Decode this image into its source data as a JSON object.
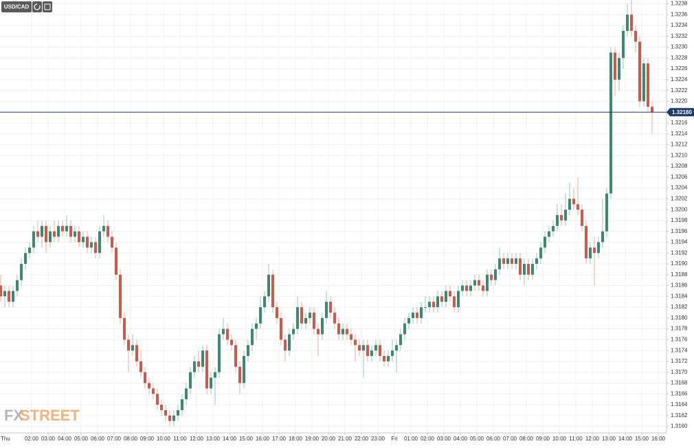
{
  "toolbar": {
    "symbol": "USD/CAD"
  },
  "watermark": {
    "prefix": "FX",
    "suffix": "STREET"
  },
  "chart_data": {
    "type": "candlestick",
    "up_color": "#3a8a72",
    "down_color": "#d2574a",
    "grid": true,
    "last_price": {
      "value": 1.3218,
      "label": "1.32180"
    },
    "last_price_color": "#1f3b6b",
    "xlim": [
      0,
      40.5
    ],
    "ylim": [
      1.31588,
      1.32387
    ],
    "xticks": [
      {
        "value": 0,
        "label": "Thu"
      },
      {
        "value": 2,
        "label": "02:00"
      },
      {
        "value": 3,
        "label": "03:00"
      },
      {
        "value": 4,
        "label": "04:00"
      },
      {
        "value": 5,
        "label": "05:00"
      },
      {
        "value": 6,
        "label": "06:00"
      },
      {
        "value": 7,
        "label": "07:00"
      },
      {
        "value": 8,
        "label": "08:00"
      },
      {
        "value": 9,
        "label": "09:00"
      },
      {
        "value": 10,
        "label": "10:00"
      },
      {
        "value": 11,
        "label": "11:00"
      },
      {
        "value": 12,
        "label": "12:00"
      },
      {
        "value": 13,
        "label": "13:00"
      },
      {
        "value": 14,
        "label": "14:00"
      },
      {
        "value": 15,
        "label": "15:00"
      },
      {
        "value": 16,
        "label": "16:00"
      },
      {
        "value": 17,
        "label": "17:00"
      },
      {
        "value": 18,
        "label": "18:00"
      },
      {
        "value": 19,
        "label": "19:00"
      },
      {
        "value": 20,
        "label": "20:00"
      },
      {
        "value": 21,
        "label": "21:00"
      },
      {
        "value": 22,
        "label": "22:00"
      },
      {
        "value": 23,
        "label": "23:00"
      },
      {
        "value": 24,
        "label": "Fri"
      },
      {
        "value": 25,
        "label": "01:00"
      },
      {
        "value": 26,
        "label": "02:00"
      },
      {
        "value": 27,
        "label": "03:00"
      },
      {
        "value": 28,
        "label": "04:00"
      },
      {
        "value": 29,
        "label": "05:00"
      },
      {
        "value": 30,
        "label": "06:00"
      },
      {
        "value": 31,
        "label": "07:00"
      },
      {
        "value": 32,
        "label": "08:00"
      },
      {
        "value": 33,
        "label": "09:00"
      },
      {
        "value": 34,
        "label": "10:00"
      },
      {
        "value": 35,
        "label": "11:00"
      },
      {
        "value": 36,
        "label": "12:00"
      },
      {
        "value": 37,
        "label": "13:00"
      },
      {
        "value": 38,
        "label": "14:00"
      },
      {
        "value": 39,
        "label": "15:00"
      },
      {
        "value": 40,
        "label": "16:00"
      }
    ],
    "yticks": [
      {
        "value": 1.316,
        "label": "1.3160"
      },
      {
        "value": 1.3162,
        "label": "1.3162"
      },
      {
        "value": 1.3164,
        "label": "1.3164"
      },
      {
        "value": 1.3166,
        "label": "1.3166"
      },
      {
        "value": 1.3168,
        "label": "1.3168"
      },
      {
        "value": 1.317,
        "label": "1.3170"
      },
      {
        "value": 1.3172,
        "label": "1.3172"
      },
      {
        "value": 1.3174,
        "label": "1.3174"
      },
      {
        "value": 1.3176,
        "label": "1.3176"
      },
      {
        "value": 1.3178,
        "label": "1.3178"
      },
      {
        "value": 1.318,
        "label": "1.3180"
      },
      {
        "value": 1.3182,
        "label": "1.3182"
      },
      {
        "value": 1.3184,
        "label": "1.3184"
      },
      {
        "value": 1.3186,
        "label": "1.3186"
      },
      {
        "value": 1.3188,
        "label": "1.3188"
      },
      {
        "value": 1.319,
        "label": "1.3190"
      },
      {
        "value": 1.3192,
        "label": "1.3192"
      },
      {
        "value": 1.3194,
        "label": "1.3194"
      },
      {
        "value": 1.3196,
        "label": "1.3196"
      },
      {
        "value": 1.3198,
        "label": "1.3198"
      },
      {
        "value": 1.32,
        "label": "1.3200"
      },
      {
        "value": 1.3202,
        "label": "1.3202"
      },
      {
        "value": 1.3204,
        "label": "1.3204"
      },
      {
        "value": 1.3206,
        "label": "1.3206"
      },
      {
        "value": 1.3208,
        "label": "1.3208"
      },
      {
        "value": 1.321,
        "label": "1.3210"
      },
      {
        "value": 1.3212,
        "label": "1.3212"
      },
      {
        "value": 1.3214,
        "label": "1.3214"
      },
      {
        "value": 1.3216,
        "label": "1.3216"
      },
      {
        "value": 1.3218,
        "label": "1.3218"
      },
      {
        "value": 1.322,
        "label": "1.3220"
      },
      {
        "value": 1.3222,
        "label": "1.3222"
      },
      {
        "value": 1.3224,
        "label": "1.3224"
      },
      {
        "value": 1.3226,
        "label": "1.3226"
      },
      {
        "value": 1.3228,
        "label": "1.3228"
      },
      {
        "value": 1.323,
        "label": "1.3230"
      },
      {
        "value": 1.3232,
        "label": "1.3232"
      },
      {
        "value": 1.3234,
        "label": "1.3234"
      },
      {
        "value": 1.3236,
        "label": "1.3236"
      },
      {
        "value": 1.3238,
        "label": "1.3238"
      }
    ],
    "ohlc": [
      [
        1.3186,
        1.3188,
        1.3183,
        1.3184
      ],
      [
        1.3184,
        1.3186,
        1.3182,
        1.3185
      ],
      [
        1.3185,
        1.3186,
        1.3182,
        1.3183
      ],
      [
        1.3183,
        1.3186,
        1.3182,
        1.3185
      ],
      [
        1.3185,
        1.3188,
        1.3184,
        1.3187
      ],
      [
        1.3187,
        1.3191,
        1.3186,
        1.319
      ],
      [
        1.319,
        1.3193,
        1.3189,
        1.3192
      ],
      [
        1.3192,
        1.3194,
        1.3191,
        1.3193
      ],
      [
        1.3193,
        1.3197,
        1.3192,
        1.3196
      ],
      [
        1.3196,
        1.3198,
        1.3194,
        1.3195
      ],
      [
        1.3195,
        1.3198,
        1.3193,
        1.3197
      ],
      [
        1.3197,
        1.3198,
        1.3192,
        1.3194
      ],
      [
        1.3194,
        1.3197,
        1.3193,
        1.3196
      ],
      [
        1.3196,
        1.3198,
        1.3194,
        1.3195
      ],
      [
        1.3195,
        1.3198,
        1.3194,
        1.3197
      ],
      [
        1.3197,
        1.3198,
        1.3195,
        1.3196
      ],
      [
        1.3196,
        1.3199,
        1.3195,
        1.3197
      ],
      [
        1.3197,
        1.3198,
        1.3194,
        1.3195
      ],
      [
        1.3195,
        1.3197,
        1.3194,
        1.3196
      ],
      [
        1.3196,
        1.3197,
        1.3193,
        1.3194
      ],
      [
        1.3194,
        1.3196,
        1.3193,
        1.3195
      ],
      [
        1.3195,
        1.3196,
        1.3192,
        1.3193
      ],
      [
        1.3193,
        1.3195,
        1.3192,
        1.3194
      ],
      [
        1.3194,
        1.3195,
        1.3191,
        1.3192
      ],
      [
        1.3192,
        1.3197,
        1.3191,
        1.3196
      ],
      [
        1.3196,
        1.3199,
        1.3195,
        1.3197
      ],
      [
        1.3197,
        1.3198,
        1.3194,
        1.3195
      ],
      [
        1.3195,
        1.3196,
        1.3192,
        1.3193
      ],
      [
        1.3193,
        1.3194,
        1.3187,
        1.3188
      ],
      [
        1.3188,
        1.3189,
        1.3179,
        1.318
      ],
      [
        1.318,
        1.3181,
        1.3175,
        1.3176
      ],
      [
        1.3176,
        1.3177,
        1.317,
        1.3174
      ],
      [
        1.3174,
        1.3177,
        1.3173,
        1.3175
      ],
      [
        1.3175,
        1.3176,
        1.3171,
        1.3172
      ],
      [
        1.3172,
        1.3174,
        1.3169,
        1.317
      ],
      [
        1.317,
        1.3171,
        1.3167,
        1.3168
      ],
      [
        1.3168,
        1.3169,
        1.3166,
        1.3167
      ],
      [
        1.3167,
        1.3168,
        1.3165,
        1.3166
      ],
      [
        1.3166,
        1.3167,
        1.3163,
        1.3164
      ],
      [
        1.3164,
        1.3165,
        1.3162,
        1.3163
      ],
      [
        1.3163,
        1.3164,
        1.3161,
        1.3162
      ],
      [
        1.3162,
        1.3163,
        1.316,
        1.3161
      ],
      [
        1.3161,
        1.3163,
        1.316,
        1.3162
      ],
      [
        1.3162,
        1.3164,
        1.3161,
        1.3163
      ],
      [
        1.3163,
        1.3166,
        1.3162,
        1.3165
      ],
      [
        1.3165,
        1.3168,
        1.3164,
        1.3167
      ],
      [
        1.3167,
        1.3171,
        1.3166,
        1.317
      ],
      [
        1.317,
        1.3173,
        1.3169,
        1.3172
      ],
      [
        1.3172,
        1.3174,
        1.317,
        1.3171
      ],
      [
        1.3171,
        1.3175,
        1.317,
        1.3174
      ],
      [
        1.3174,
        1.3175,
        1.3166,
        1.3167
      ],
      [
        1.3167,
        1.317,
        1.3166,
        1.3169
      ],
      [
        1.3169,
        1.3171,
        1.3164,
        1.317
      ],
      [
        1.317,
        1.3178,
        1.3169,
        1.3177
      ],
      [
        1.3177,
        1.318,
        1.3176,
        1.3178
      ],
      [
        1.3178,
        1.3179,
        1.3175,
        1.3176
      ],
      [
        1.3176,
        1.3177,
        1.3174,
        1.3175
      ],
      [
        1.3175,
        1.3176,
        1.317,
        1.3171
      ],
      [
        1.3171,
        1.3172,
        1.3166,
        1.3168
      ],
      [
        1.3168,
        1.3174,
        1.3167,
        1.3173
      ],
      [
        1.3173,
        1.3176,
        1.3172,
        1.3175
      ],
      [
        1.3175,
        1.3179,
        1.3174,
        1.3178
      ],
      [
        1.3178,
        1.318,
        1.3176,
        1.3179
      ],
      [
        1.3179,
        1.3184,
        1.3178,
        1.3182
      ],
      [
        1.3182,
        1.3185,
        1.3181,
        1.3184
      ],
      [
        1.3184,
        1.319,
        1.3183,
        1.3188
      ],
      [
        1.3188,
        1.3189,
        1.3181,
        1.3182
      ],
      [
        1.3182,
        1.3183,
        1.3179,
        1.318
      ],
      [
        1.318,
        1.3181,
        1.3175,
        1.3176
      ],
      [
        1.3176,
        1.3177,
        1.3172,
        1.3174
      ],
      [
        1.3174,
        1.3178,
        1.3173,
        1.3177
      ],
      [
        1.3177,
        1.3179,
        1.3176,
        1.3178
      ],
      [
        1.3178,
        1.3184,
        1.3177,
        1.3182
      ],
      [
        1.3182,
        1.3183,
        1.3178,
        1.3179
      ],
      [
        1.3179,
        1.3181,
        1.3178,
        1.318
      ],
      [
        1.318,
        1.3182,
        1.3179,
        1.3181
      ],
      [
        1.3181,
        1.3182,
        1.3177,
        1.3178
      ],
      [
        1.3178,
        1.3179,
        1.3173,
        1.3177
      ],
      [
        1.3177,
        1.3181,
        1.3176,
        1.318
      ],
      [
        1.318,
        1.3185,
        1.3179,
        1.3183
      ],
      [
        1.3183,
        1.3184,
        1.318,
        1.3181
      ],
      [
        1.3181,
        1.3182,
        1.3178,
        1.3179
      ],
      [
        1.3179,
        1.318,
        1.3176,
        1.3177
      ],
      [
        1.3177,
        1.3179,
        1.3176,
        1.3178
      ],
      [
        1.3178,
        1.3179,
        1.3176,
        1.3177
      ],
      [
        1.3177,
        1.3178,
        1.3175,
        1.3176
      ],
      [
        1.3176,
        1.3177,
        1.3172,
        1.3175
      ],
      [
        1.3175,
        1.3176,
        1.3173,
        1.3174
      ],
      [
        1.3174,
        1.3176,
        1.3169,
        1.3175
      ],
      [
        1.3175,
        1.3176,
        1.3172,
        1.3173
      ],
      [
        1.3173,
        1.3175,
        1.3172,
        1.3174
      ],
      [
        1.3174,
        1.3176,
        1.3173,
        1.3175
      ],
      [
        1.3175,
        1.3176,
        1.3172,
        1.3173
      ],
      [
        1.3173,
        1.3174,
        1.3171,
        1.3172
      ],
      [
        1.3172,
        1.3174,
        1.3171,
        1.3173
      ],
      [
        1.3173,
        1.3176,
        1.3172,
        1.3174
      ],
      [
        1.3174,
        1.3176,
        1.317,
        1.3175
      ],
      [
        1.3175,
        1.3178,
        1.3174,
        1.3177
      ],
      [
        1.3177,
        1.318,
        1.3176,
        1.3179
      ],
      [
        1.3179,
        1.3181,
        1.3178,
        1.318
      ],
      [
        1.318,
        1.3182,
        1.3179,
        1.3181
      ],
      [
        1.3181,
        1.3182,
        1.3179,
        1.318
      ],
      [
        1.318,
        1.3183,
        1.3179,
        1.3182
      ],
      [
        1.3182,
        1.3184,
        1.3181,
        1.3182
      ],
      [
        1.3182,
        1.3184,
        1.3181,
        1.3183
      ],
      [
        1.3183,
        1.3184,
        1.3181,
        1.3182
      ],
      [
        1.3182,
        1.3185,
        1.3181,
        1.3184
      ],
      [
        1.3184,
        1.3185,
        1.3182,
        1.3183
      ],
      [
        1.3183,
        1.3186,
        1.3182,
        1.3185
      ],
      [
        1.3185,
        1.3186,
        1.3183,
        1.3184
      ],
      [
        1.3184,
        1.3185,
        1.3181,
        1.3182
      ],
      [
        1.3182,
        1.3186,
        1.3181,
        1.3185
      ],
      [
        1.3185,
        1.3187,
        1.3184,
        1.3186
      ],
      [
        1.3186,
        1.3187,
        1.3184,
        1.3185
      ],
      [
        1.3185,
        1.3187,
        1.3184,
        1.3186
      ],
      [
        1.3186,
        1.3188,
        1.3185,
        1.3187
      ],
      [
        1.3187,
        1.3188,
        1.3185,
        1.3186
      ],
      [
        1.3186,
        1.3187,
        1.3184,
        1.3185
      ],
      [
        1.3185,
        1.3189,
        1.3184,
        1.3188
      ],
      [
        1.3188,
        1.3189,
        1.3186,
        1.3187
      ],
      [
        1.3187,
        1.319,
        1.3186,
        1.3189
      ],
      [
        1.3189,
        1.3193,
        1.3188,
        1.3191
      ],
      [
        1.3191,
        1.3192,
        1.3189,
        1.319
      ],
      [
        1.319,
        1.3192,
        1.3189,
        1.3191
      ],
      [
        1.3191,
        1.3192,
        1.3189,
        1.319
      ],
      [
        1.319,
        1.3192,
        1.3189,
        1.3191
      ],
      [
        1.3191,
        1.3192,
        1.3187,
        1.3188
      ],
      [
        1.3188,
        1.3191,
        1.3186,
        1.319
      ],
      [
        1.319,
        1.3191,
        1.3187,
        1.3188
      ],
      [
        1.3188,
        1.3191,
        1.3187,
        1.319
      ],
      [
        1.319,
        1.3192,
        1.3189,
        1.3191
      ],
      [
        1.3191,
        1.3194,
        1.319,
        1.3193
      ],
      [
        1.3193,
        1.3196,
        1.3192,
        1.3195
      ],
      [
        1.3195,
        1.3197,
        1.3194,
        1.3196
      ],
      [
        1.3196,
        1.3198,
        1.3195,
        1.3197
      ],
      [
        1.3197,
        1.3201,
        1.3196,
        1.3199
      ],
      [
        1.3199,
        1.3201,
        1.3197,
        1.3198
      ],
      [
        1.3198,
        1.3203,
        1.3197,
        1.32
      ],
      [
        1.32,
        1.3205,
        1.3199,
        1.3202
      ],
      [
        1.3202,
        1.3204,
        1.32,
        1.3201
      ],
      [
        1.3201,
        1.3206,
        1.3199,
        1.32
      ],
      [
        1.32,
        1.3201,
        1.3196,
        1.3197
      ],
      [
        1.3197,
        1.3198,
        1.319,
        1.3191
      ],
      [
        1.3191,
        1.3194,
        1.319,
        1.3193
      ],
      [
        1.3193,
        1.3195,
        1.3186,
        1.3192
      ],
      [
        1.3192,
        1.3195,
        1.3191,
        1.3194
      ],
      [
        1.3194,
        1.3202,
        1.3193,
        1.3196
      ],
      [
        1.3196,
        1.3204,
        1.3195,
        1.3203
      ],
      [
        1.3203,
        1.323,
        1.3202,
        1.3229
      ],
      [
        1.3229,
        1.323,
        1.3221,
        1.3224
      ],
      [
        1.3224,
        1.3229,
        1.3222,
        1.3228
      ],
      [
        1.3228,
        1.3234,
        1.3226,
        1.3233
      ],
      [
        1.3233,
        1.3238,
        1.3232,
        1.3236
      ],
      [
        1.3236,
        1.3239,
        1.3232,
        1.3233
      ],
      [
        1.3233,
        1.3234,
        1.3229,
        1.3231
      ],
      [
        1.3231,
        1.3232,
        1.3219,
        1.322
      ],
      [
        1.322,
        1.3228,
        1.3219,
        1.3227
      ],
      [
        1.3227,
        1.3228,
        1.3218,
        1.3219
      ],
      [
        1.3219,
        1.322,
        1.3214,
        1.3218
      ]
    ]
  }
}
